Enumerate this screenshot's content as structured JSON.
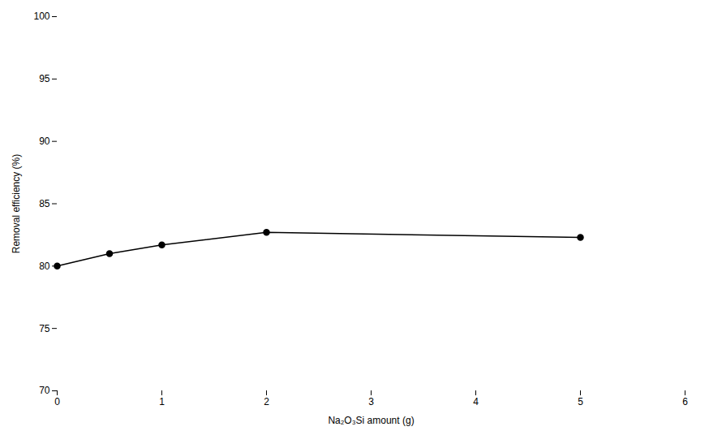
{
  "chart_data": {
    "type": "line",
    "x": [
      0,
      0.5,
      1,
      2,
      5
    ],
    "values": [
      80.0,
      81.0,
      81.7,
      82.7,
      82.3
    ],
    "color": "#000000",
    "marker": "circle",
    "xlabel": "Na₂O₃Si amount (g)",
    "ylabel": "Removal efficiency (%)",
    "xlim": [
      0,
      6
    ],
    "ylim": [
      70,
      100
    ],
    "xticks": [
      0,
      1,
      2,
      3,
      4,
      5,
      6
    ],
    "yticks": [
      70,
      75,
      80,
      85,
      90,
      95,
      100
    ],
    "grid": false
  }
}
